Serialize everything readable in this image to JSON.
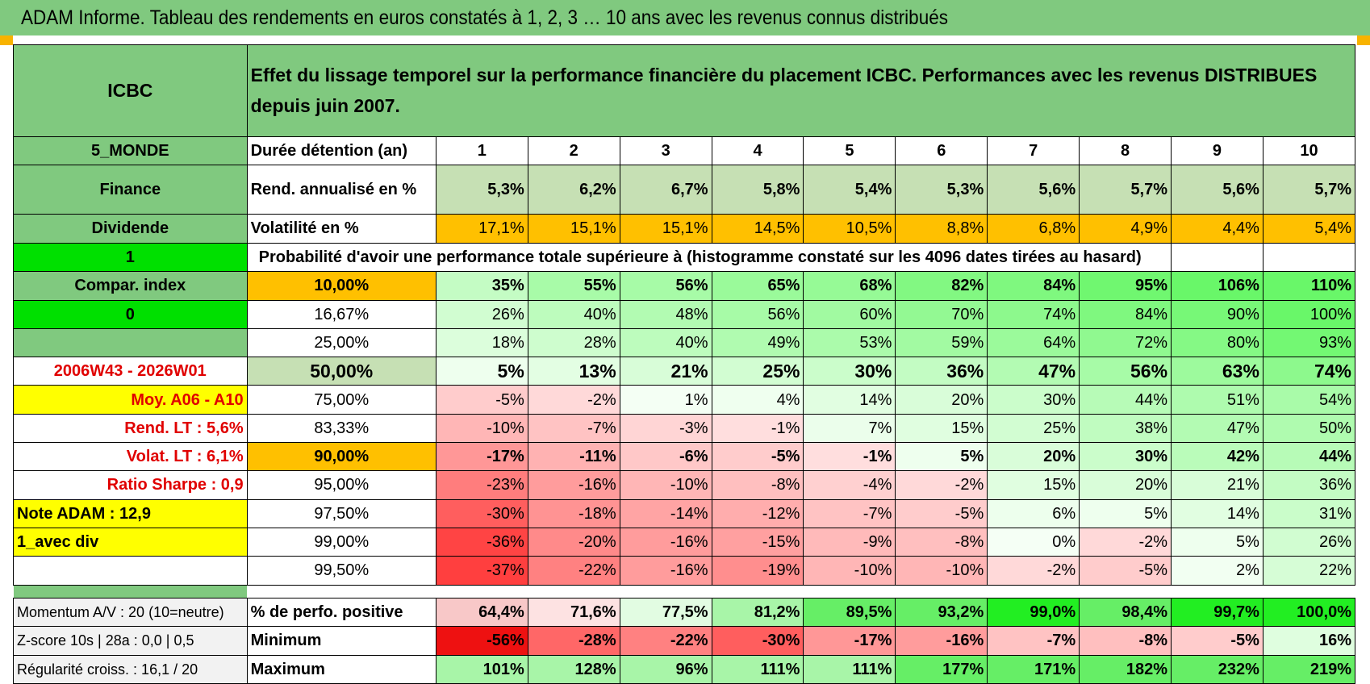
{
  "title": "ADAM Informe. Tableau des rendements en euros constatés à 1, 2, 3 … 10 ans avec les revenus connus distribués",
  "header": {
    "fund": "ICBC",
    "description": "Effet du lissage temporel sur la performance financière du placement ICBC. Performances avec les revenus DISTRIBUES depuis juin 2007."
  },
  "left_panel": {
    "zone": "5_MONDE",
    "sector": "Finance",
    "type": "Dividende",
    "flag1": "1",
    "compar_index": "Compar. index",
    "flag2": "0",
    "period": "2006W43 - 2026W01",
    "moy": "Moy. A06 - A10",
    "rend_lt": "Rend. LT :   5,6%",
    "volat_lt": "Volat. LT :   6,1%",
    "sharpe": "Ratio Sharpe :    0,9",
    "note": "Note ADAM : 12,9",
    "div_mode": "1_avec div",
    "momentum": "Momentum A/V : 20 (10=neutre)",
    "zscore": "Z-score 10s | 28a : 0,0 | 0,5",
    "regularite": "Régularité croiss. : 16,1 / 20"
  },
  "table": {
    "duration_label": "Durée détention (an)",
    "years": [
      "1",
      "2",
      "3",
      "4",
      "5",
      "6",
      "7",
      "8",
      "9",
      "10"
    ],
    "rend_label": "Rend. annualisé en %",
    "rend": [
      "5,3%",
      "6,2%",
      "6,7%",
      "5,8%",
      "5,4%",
      "5,3%",
      "5,6%",
      "5,7%",
      "5,6%",
      "5,7%"
    ],
    "vol_label": "Volatilité en %",
    "vol": [
      "17,1%",
      "15,1%",
      "15,1%",
      "14,5%",
      "10,5%",
      "8,8%",
      "6,8%",
      "4,9%",
      "4,4%",
      "5,4%"
    ],
    "prob_label": "Probabilité d'avoir une performance totale supérieure à (histogramme constaté sur les 4096 dates tirées au hasard)",
    "quantiles": [
      {
        "p": "10,00%",
        "vals": [
          "35%",
          "55%",
          "56%",
          "65%",
          "68%",
          "82%",
          "84%",
          "95%",
          "106%",
          "110%"
        ]
      },
      {
        "p": "16,67%",
        "vals": [
          "26%",
          "40%",
          "48%",
          "56%",
          "60%",
          "70%",
          "74%",
          "84%",
          "90%",
          "100%"
        ]
      },
      {
        "p": "25,00%",
        "vals": [
          "18%",
          "28%",
          "40%",
          "49%",
          "53%",
          "59%",
          "64%",
          "72%",
          "80%",
          "93%"
        ]
      },
      {
        "p": "50,00%",
        "vals": [
          "5%",
          "13%",
          "21%",
          "25%",
          "30%",
          "36%",
          "47%",
          "56%",
          "63%",
          "74%"
        ]
      },
      {
        "p": "75,00%",
        "vals": [
          "-5%",
          "-2%",
          "1%",
          "4%",
          "14%",
          "20%",
          "30%",
          "44%",
          "51%",
          "54%"
        ]
      },
      {
        "p": "83,33%",
        "vals": [
          "-10%",
          "-7%",
          "-3%",
          "-1%",
          "7%",
          "15%",
          "25%",
          "38%",
          "47%",
          "50%"
        ]
      },
      {
        "p": "90,00%",
        "vals": [
          "-17%",
          "-11%",
          "-6%",
          "-5%",
          "-1%",
          "5%",
          "20%",
          "30%",
          "42%",
          "44%"
        ]
      },
      {
        "p": "95,00%",
        "vals": [
          "-23%",
          "-16%",
          "-10%",
          "-8%",
          "-4%",
          "-2%",
          "15%",
          "20%",
          "21%",
          "36%"
        ]
      },
      {
        "p": "97,50%",
        "vals": [
          "-30%",
          "-18%",
          "-14%",
          "-12%",
          "-7%",
          "-5%",
          "6%",
          "5%",
          "14%",
          "31%"
        ]
      },
      {
        "p": "99,00%",
        "vals": [
          "-36%",
          "-20%",
          "-16%",
          "-15%",
          "-9%",
          "-8%",
          "0%",
          "-2%",
          "5%",
          "26%"
        ]
      },
      {
        "p": "99,50%",
        "vals": [
          "-37%",
          "-22%",
          "-16%",
          "-19%",
          "-10%",
          "-10%",
          "-2%",
          "-5%",
          "2%",
          "22%"
        ]
      }
    ],
    "pos_label": "% de perfo. positive",
    "pos": [
      "64,4%",
      "71,6%",
      "77,5%",
      "81,2%",
      "89,5%",
      "93,2%",
      "99,0%",
      "98,4%",
      "99,7%",
      "100,0%"
    ],
    "min_label": "Minimum",
    "min": [
      "-56%",
      "-28%",
      "-22%",
      "-30%",
      "-17%",
      "-16%",
      "-7%",
      "-8%",
      "-5%",
      "16%"
    ],
    "max_label": "Maximum",
    "max": [
      "101%",
      "128%",
      "96%",
      "111%",
      "111%",
      "177%",
      "171%",
      "182%",
      "232%",
      "219%"
    ]
  },
  "colors": {
    "header_green": "#80c97f",
    "light_green": "#c6e0b4",
    "orange": "#ffc000",
    "bright_green": "#00e000",
    "yellow": "#ffff00",
    "label_red": "#e00000"
  }
}
